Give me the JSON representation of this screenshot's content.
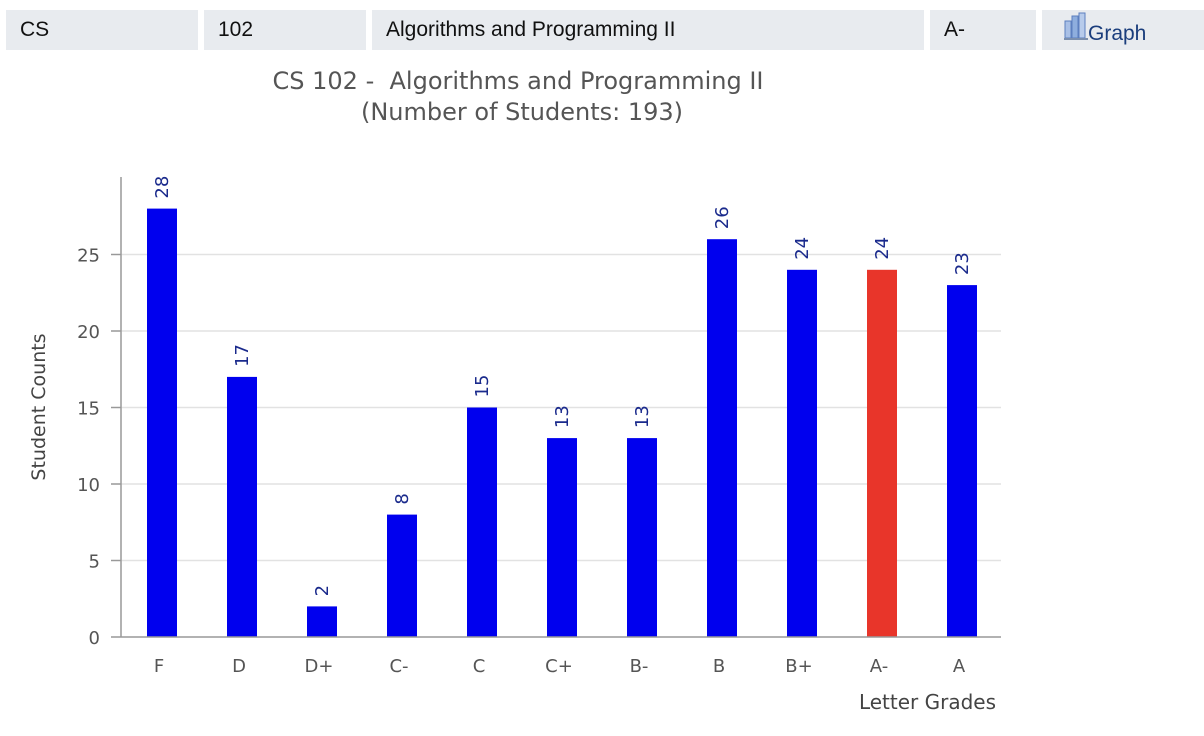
{
  "course_row": {
    "department": "CS",
    "number": "102",
    "name": "Algorithms and Programming II",
    "grade": "A-",
    "graph_label": "Graph",
    "graph_icon": "bar-chart-icon"
  },
  "colors": {
    "bar": "#0000ee",
    "highlight": "#e8352a",
    "value_label": "#1a2a8c",
    "cell_bg": "#e8ebef"
  },
  "chart_data": {
    "type": "bar",
    "title": "CS 102 -  Algorithms and Programming II",
    "subtitle": "(Number of Students: 193)",
    "xlabel": "Letter Grades",
    "ylabel": "Student Counts",
    "categories": [
      "F",
      "D",
      "D+",
      "C-",
      "C",
      "C+",
      "B-",
      "B",
      "B+",
      "A-",
      "A"
    ],
    "values": [
      28,
      17,
      2,
      8,
      15,
      13,
      13,
      26,
      24,
      24,
      23
    ],
    "highlight_category": "A-",
    "ylim": [
      0,
      30
    ],
    "yticks": [
      0,
      5,
      10,
      15,
      20,
      25
    ],
    "grid": true
  }
}
